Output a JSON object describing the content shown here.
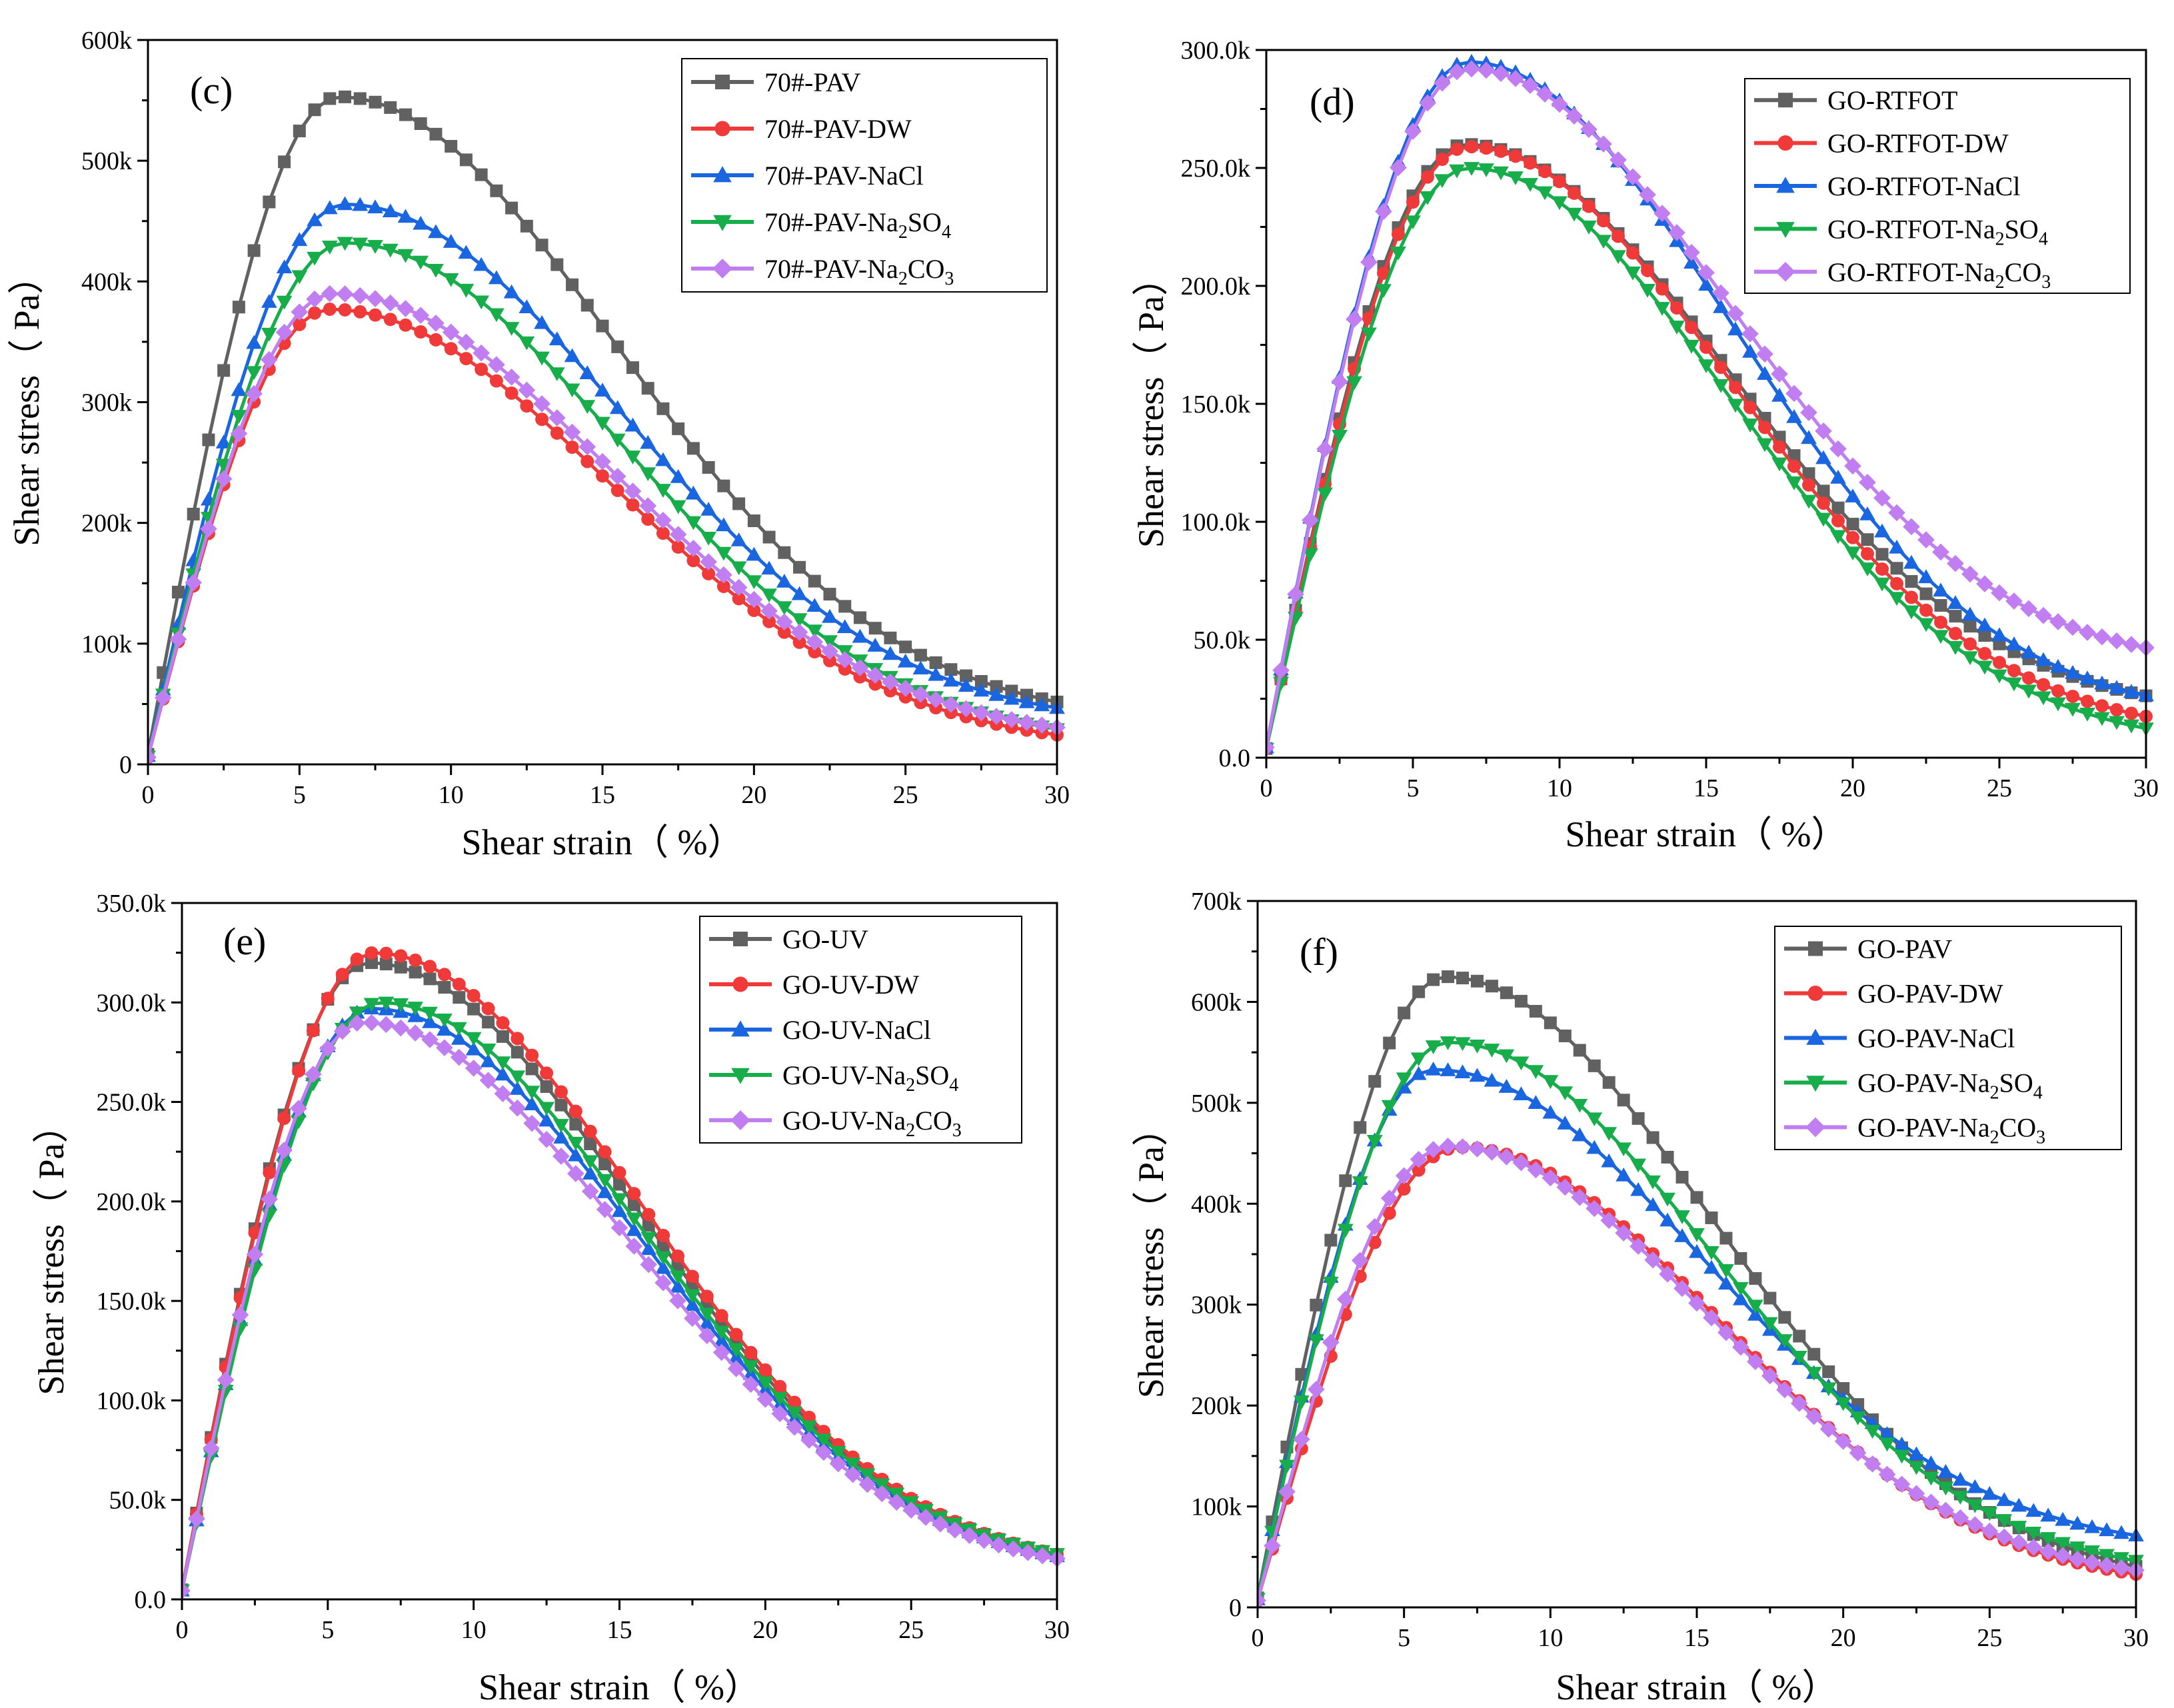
{
  "figure": {
    "background": "#ffffff"
  },
  "marker_colors": {
    "square": "#616161",
    "circle": "#f03a3a",
    "triangle": "#1a66e0",
    "triangle-down": "#16ad4a",
    "diamond": "#c07ef0"
  },
  "chart_data": [
    {
      "type": "line",
      "panel_label": "(c)",
      "xlabel": "Shear strain（ %）",
      "ylabel": "Shear stress（ Pa）",
      "xlim": [
        0,
        30
      ],
      "ylim": [
        0,
        600000
      ],
      "xticks": [
        "0",
        "5",
        "10",
        "15",
        "20",
        "25",
        "30"
      ],
      "yticks": [
        "0",
        "100k",
        "200k",
        "300k",
        "400k",
        "500k",
        "600k"
      ],
      "legend_position": "top-right",
      "series": [
        {
          "name": "70#-PAV",
          "label_main": "70#-PAV",
          "label_sub": "",
          "label_tail": "",
          "marker": "square",
          "color": "#616161",
          "peak_x": 6.3,
          "peak_y": 553000,
          "y_end": 34000
        },
        {
          "name": "70#-PAV-DW",
          "label_main": "70#-PAV-DW",
          "label_sub": "",
          "label_tail": "",
          "marker": "circle",
          "color": "#f03a3a",
          "peak_x": 6.0,
          "peak_y": 377000,
          "y_end": 12000
        },
        {
          "name": "70#-PAV-NaCl",
          "label_main": "70#-PAV-NaCl",
          "label_sub": "",
          "label_tail": "",
          "marker": "triangle",
          "color": "#1a66e0",
          "peak_x": 6.5,
          "peak_y": 464000,
          "y_end": 32000
        },
        {
          "name": "70#-PAV-Na2SO4",
          "label_main": "70#-PAV-Na",
          "label_sub": "2",
          "label_tail": "SO",
          "label_sub2": "4",
          "marker": "triangle-down",
          "color": "#16ad4a",
          "peak_x": 6.5,
          "peak_y": 432000,
          "y_end": 15000
        },
        {
          "name": "70#-PAV-Na2CO3",
          "label_main": "70#-PAV-Na",
          "label_sub": "2",
          "label_tail": "CO",
          "label_sub2": "3",
          "marker": "diamond",
          "color": "#c07ef0",
          "peak_x": 6.1,
          "peak_y": 390000,
          "y_end": 18000
        }
      ]
    },
    {
      "type": "line",
      "panel_label": "(d)",
      "xlabel": "Shear strain（ %）",
      "ylabel": "Shear stress（ Pa）",
      "xlim": [
        0,
        30
      ],
      "ylim": [
        0,
        300000
      ],
      "xticks": [
        "0",
        "5",
        "10",
        "15",
        "20",
        "25",
        "30"
      ],
      "yticks": [
        "0.0",
        "50.0k",
        "100.0k",
        "150.0k",
        "200.0k",
        "250.0k",
        "300.0k"
      ],
      "legend_position": "top-right",
      "series": [
        {
          "name": "GO-RTFOT",
          "label_main": "GO-RTFOT",
          "label_sub": "",
          "label_tail": "",
          "marker": "square",
          "color": "#616161",
          "peak_x": 6.8,
          "peak_y": 260000,
          "y_end": 18000
        },
        {
          "name": "GO-RTFOT-DW",
          "label_main": "GO-RTFOT-DW",
          "label_sub": "",
          "label_tail": "",
          "marker": "circle",
          "color": "#f03a3a",
          "peak_x": 6.9,
          "peak_y": 259000,
          "y_end": 9000
        },
        {
          "name": "GO-RTFOT-NaCl",
          "label_main": "GO-RTFOT-NaCl",
          "label_sub": "",
          "label_tail": "",
          "marker": "triangle",
          "color": "#1a66e0",
          "peak_x": 6.9,
          "peak_y": 295000,
          "y_end": 17000
        },
        {
          "name": "GO-RTFOT-Na2SO4",
          "label_main": "GO-RTFOT-Na",
          "label_sub": "2",
          "label_tail": "SO",
          "label_sub2": "4",
          "marker": "triangle-down",
          "color": "#16ad4a",
          "peak_x": 6.9,
          "peak_y": 250000,
          "y_end": 4000
        },
        {
          "name": "GO-RTFOT-Na2CO3",
          "label_main": "GO-RTFOT-Na",
          "label_sub": "2",
          "label_tail": "CO",
          "label_sub2": "3",
          "marker": "diamond",
          "color": "#c07ef0",
          "peak_x": 6.9,
          "peak_y": 292000,
          "y_end": 38000
        }
      ]
    },
    {
      "type": "line",
      "panel_label": "(e)",
      "xlabel": "Shear strain（ %）",
      "ylabel": "Shear stress（ Pa）",
      "xlim": [
        0,
        30
      ],
      "ylim": [
        0,
        350000
      ],
      "xticks": [
        "0",
        "5",
        "10",
        "15",
        "20",
        "25",
        "30"
      ],
      "yticks": [
        "0.0",
        "50.0k",
        "100.0k",
        "150.0k",
        "200.0k",
        "250.0k",
        "300.0k",
        "350.0k"
      ],
      "legend_position": "top-right",
      "series": [
        {
          "name": "GO-UV",
          "label_main": "GO-UV",
          "label_sub": "",
          "label_tail": "",
          "marker": "square",
          "color": "#616161",
          "peak_x": 6.4,
          "peak_y": 320000,
          "y_end": 12000
        },
        {
          "name": "GO-UV-DW",
          "label_main": "GO-UV-DW",
          "label_sub": "",
          "label_tail": "",
          "marker": "circle",
          "color": "#f03a3a",
          "peak_x": 6.6,
          "peak_y": 325000,
          "y_end": 12000
        },
        {
          "name": "GO-UV-NaCl",
          "label_main": "GO-UV-NaCl",
          "label_sub": "",
          "label_tail": "",
          "marker": "triangle",
          "color": "#1a66e0",
          "peak_x": 6.5,
          "peak_y": 297000,
          "y_end": 12000
        },
        {
          "name": "GO-UV-Na2SO4",
          "label_main": "GO-UV-Na",
          "label_sub": "2",
          "label_tail": "SO",
          "label_sub2": "4",
          "marker": "triangle-down",
          "color": "#16ad4a",
          "peak_x": 6.8,
          "peak_y": 300000,
          "y_end": 13000
        },
        {
          "name": "GO-UV-Na2CO3",
          "label_main": "GO-UV-Na",
          "label_sub": "2",
          "label_tail": "CO",
          "label_sub2": "3",
          "marker": "diamond",
          "color": "#c07ef0",
          "peak_x": 6.2,
          "peak_y": 290000,
          "y_end": 11000
        }
      ]
    },
    {
      "type": "line",
      "panel_label": "(f)",
      "xlabel": "Shear strain（ %）",
      "ylabel": "Shear stress（ Pa）",
      "xlim": [
        0,
        30
      ],
      "ylim": [
        0,
        700000
      ],
      "xticks": [
        "0",
        "5",
        "10",
        "15",
        "20",
        "25",
        "30"
      ],
      "yticks": [
        "0",
        "100k",
        "200k",
        "300k",
        "400k",
        "500k",
        "600k",
        "700k"
      ],
      "legend_position": "top-right",
      "series": [
        {
          "name": "GO-PAV",
          "label_main": "GO-PAV",
          "label_sub": "",
          "label_tail": "",
          "marker": "square",
          "color": "#616161",
          "peak_x": 6.4,
          "peak_y": 625000,
          "y_end": 20000
        },
        {
          "name": "GO-PAV-DW",
          "label_main": "GO-PAV-DW",
          "label_sub": "",
          "label_tail": "",
          "marker": "circle",
          "color": "#f03a3a",
          "peak_x": 6.9,
          "peak_y": 456000,
          "y_end": 18000
        },
        {
          "name": "GO-PAV-NaCl",
          "label_main": "GO-PAV-NaCl",
          "label_sub": "",
          "label_tail": "",
          "marker": "triangle",
          "color": "#1a66e0",
          "peak_x": 6.0,
          "peak_y": 533000,
          "y_end": 55000
        },
        {
          "name": "GO-PAV-Na2SO4",
          "label_main": "GO-PAV-Na",
          "label_sub": "2",
          "label_tail": "SO",
          "label_sub2": "4",
          "marker": "triangle-down",
          "color": "#16ad4a",
          "peak_x": 6.5,
          "peak_y": 560000,
          "y_end": 28000
        },
        {
          "name": "GO-PAV-Na2CO3",
          "label_main": "GO-PAV-Na",
          "label_sub": "2",
          "label_tail": "CO",
          "label_sub2": "3",
          "marker": "diamond",
          "color": "#c07ef0",
          "peak_x": 6.5,
          "peak_y": 457000,
          "y_end": 22000
        }
      ]
    }
  ]
}
